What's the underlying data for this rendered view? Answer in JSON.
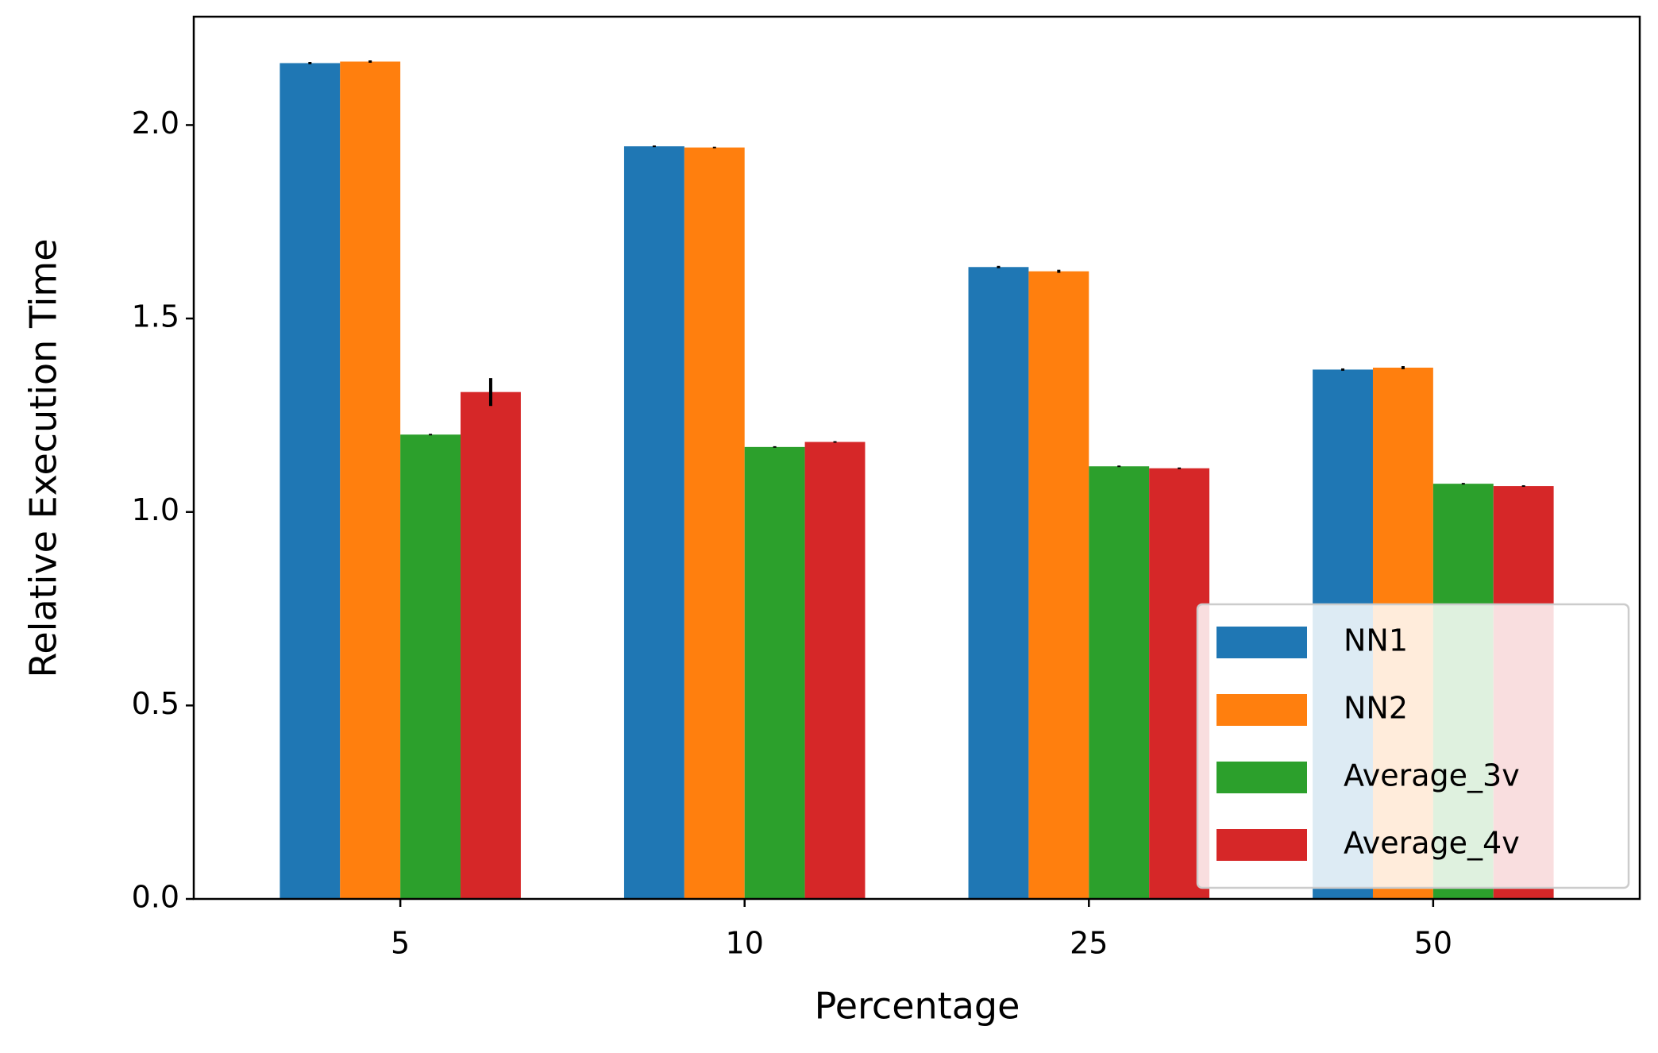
{
  "chart_data": {
    "type": "bar",
    "x_label": "Percentage",
    "y_label": "Relative Execution Time",
    "categories": [
      "5",
      "10",
      "25",
      "50"
    ],
    "series": [
      {
        "name": "NN1",
        "color": "#1f77b4",
        "values": [
          2.16,
          1.945,
          1.633,
          1.368
        ],
        "errors": [
          0.003,
          0.002,
          0.003,
          0.003
        ]
      },
      {
        "name": "NN2",
        "color": "#ff7f0e",
        "values": [
          2.164,
          1.942,
          1.622,
          1.373
        ],
        "errors": [
          0.003,
          0.002,
          0.004,
          0.004
        ]
      },
      {
        "name": "Average_3v",
        "color": "#2ca02c",
        "values": [
          1.2,
          1.168,
          1.118,
          1.073
        ],
        "errors": [
          0.002,
          0.002,
          0.002,
          0.002
        ]
      },
      {
        "name": "Average_4v",
        "color": "#d62728",
        "values": [
          1.31,
          1.181,
          1.113,
          1.067
        ],
        "errors": [
          0.036,
          0.002,
          0.002,
          0.002
        ]
      }
    ],
    "ylim": [
      0,
      2.28
    ],
    "yticks": [
      {
        "value": 0,
        "label": "0.0"
      },
      0.5,
      {
        "value": 1,
        "label": "1.0"
      },
      1.5,
      {
        "value": 2,
        "label": "2.0"
      }
    ],
    "legend": "lower right",
    "grid": false
  }
}
